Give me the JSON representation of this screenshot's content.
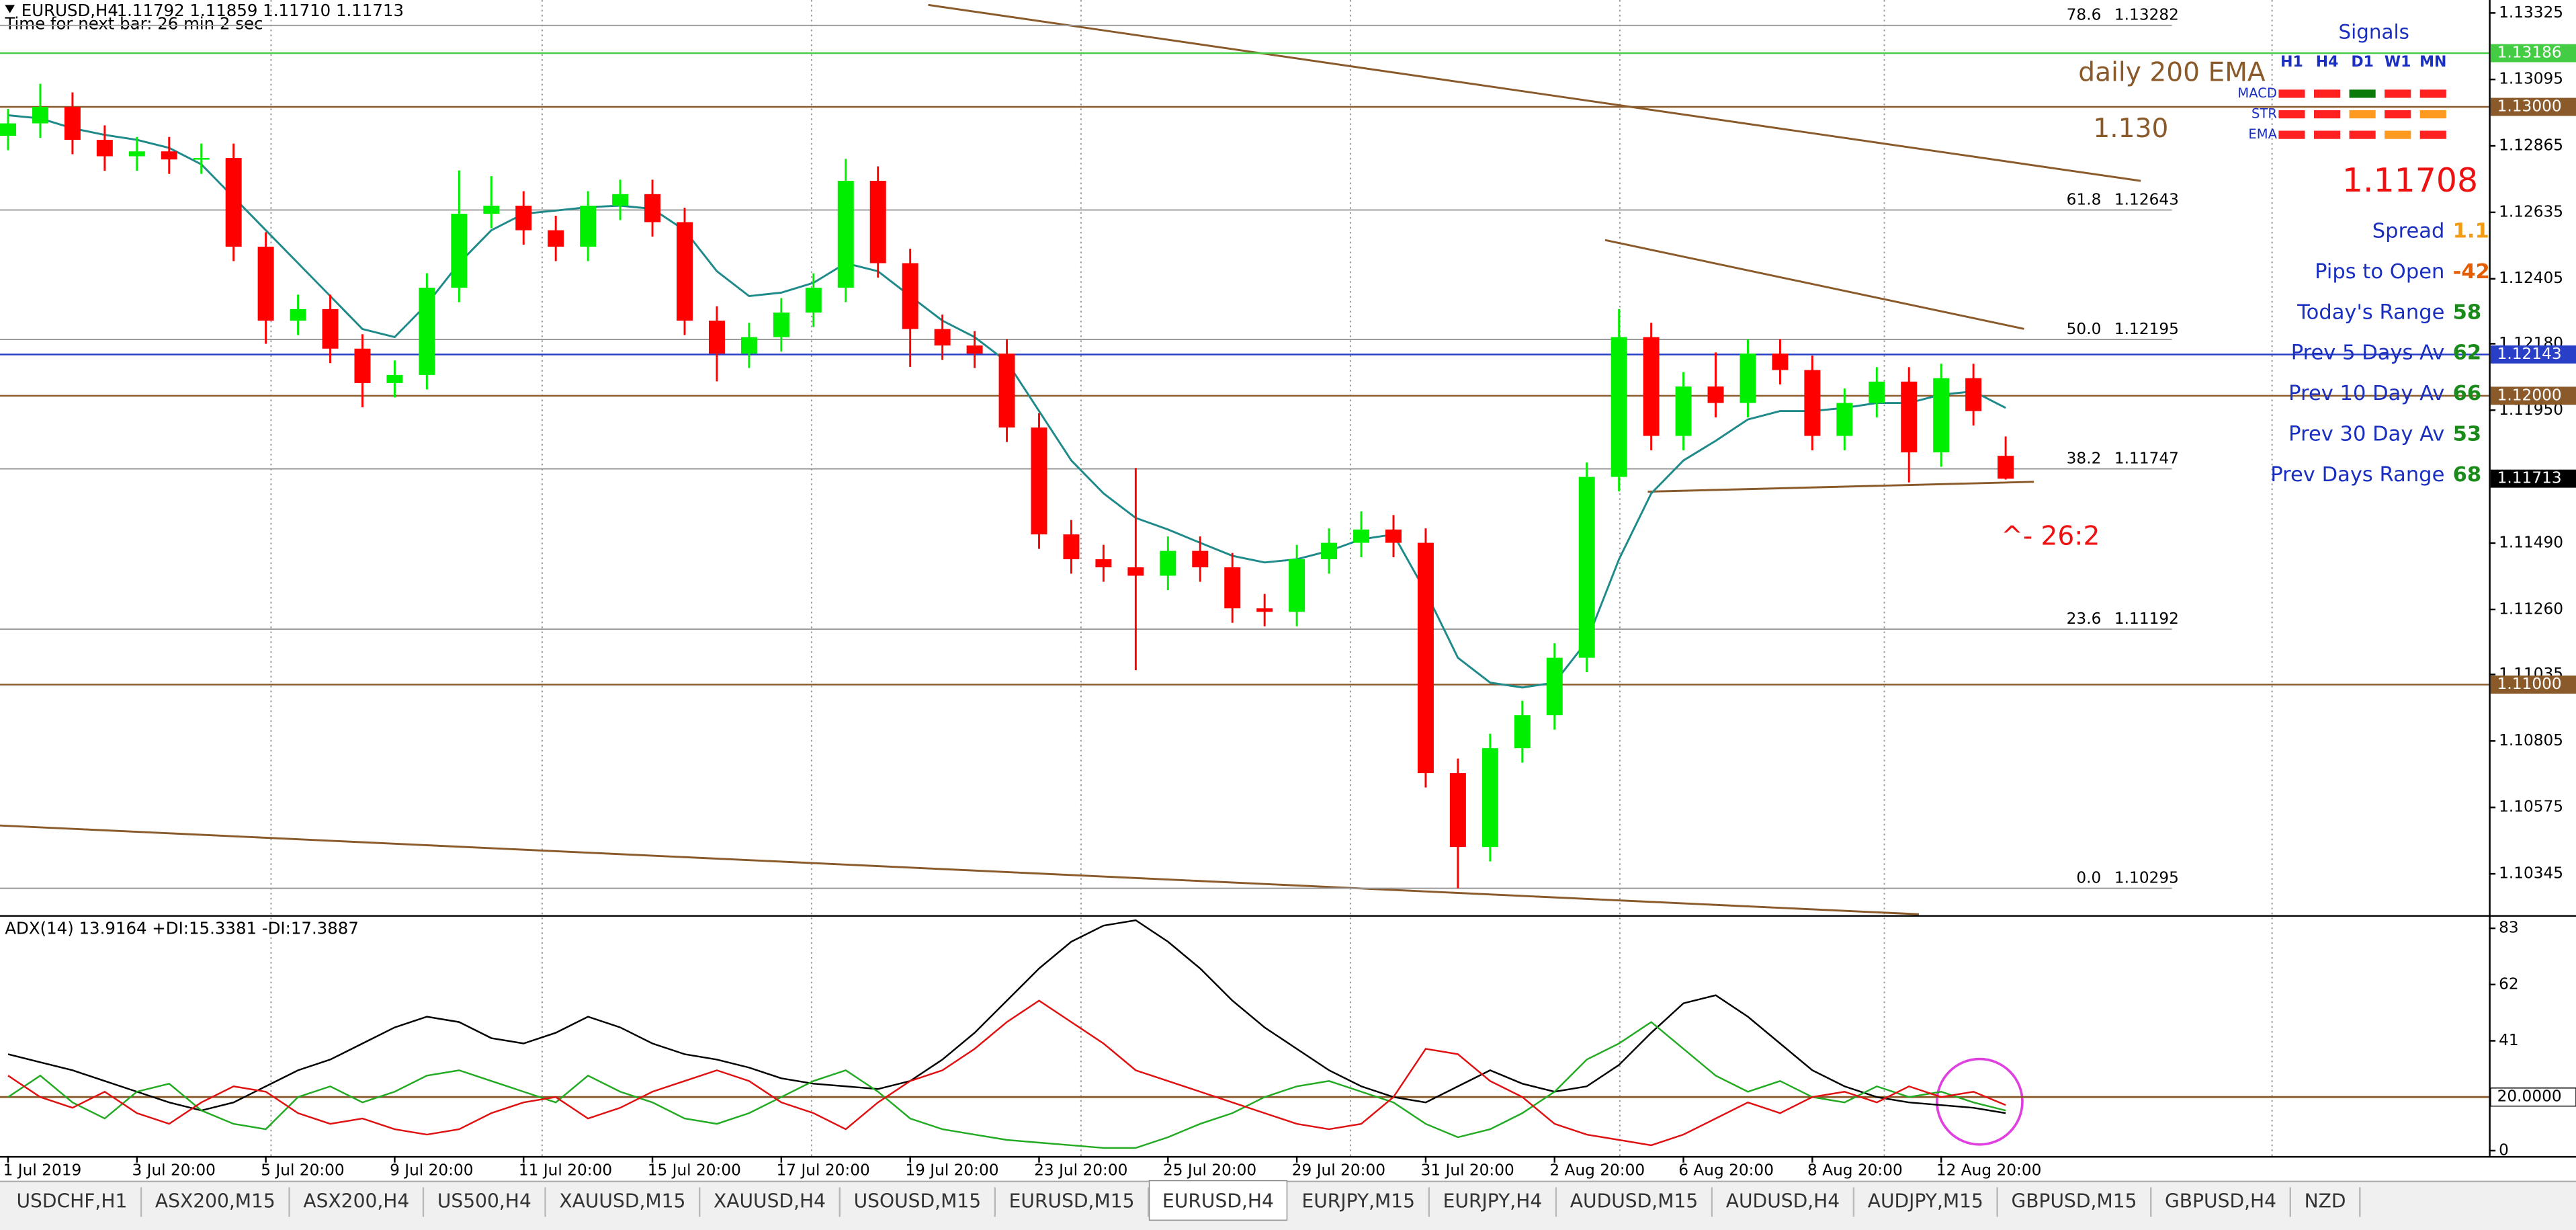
{
  "header": {
    "symbol": "EURUSD,H4",
    "quote": "1.11792 1.11859 1.11710 1.11713",
    "timer": "Time for next bar: 26 min 2 sec"
  },
  "annotations": {
    "ema_label": "daily 200 EMA",
    "level_label": "1.130",
    "bid": 1.11708,
    "count": "^- 26:2"
  },
  "signals": {
    "title": "Signals",
    "columns": [
      "H1",
      "H4",
      "D1",
      "W1",
      "MN"
    ],
    "rows": [
      {
        "name": "MACD",
        "colors": [
          "#ff2020",
          "#ff2020",
          "#0a7a0a",
          "#ff2020",
          "#ff2020"
        ]
      },
      {
        "name": "STR",
        "colors": [
          "#ff2020",
          "#ff2020",
          "#ff9a20",
          "#ff2020",
          "#ff9a20"
        ]
      },
      {
        "name": "EMA",
        "colors": [
          "#ff2020",
          "#ff2020",
          "#ff2020",
          "#ff9a20",
          "#ff2020"
        ]
      }
    ]
  },
  "stats": [
    {
      "label": "Spread",
      "value": 1.1,
      "color": "#f39c12"
    },
    {
      "label": "Pips to Open",
      "value": -42,
      "color": "#e65c00"
    },
    {
      "label": "Today's Range",
      "value": 58,
      "color": "#1a8a1a"
    },
    {
      "label": "Prev 5 Days Av",
      "value": 62,
      "color": "#1a8a1a"
    },
    {
      "label": "Prev 10 Day Av",
      "value": 66,
      "color": "#1a8a1a"
    },
    {
      "label": "Prev 30 Day Av",
      "value": 53,
      "color": "#1a8a1a"
    },
    {
      "label": "Prev Days Range",
      "value": 68,
      "color": "#1a8a1a"
    }
  ],
  "tabs": {
    "items": [
      "USDCHF,H1",
      "ASX200,M15",
      "ASX200,H4",
      "US500,H4",
      "XAUUSD,M15",
      "XAUUSD,H4",
      "USOUSD,M15",
      "EURUSD,M15",
      "EURUSD,H4",
      "EURJPY,M15",
      "EURJPY,H4",
      "AUDUSD,M15",
      "AUDUSD,H4",
      "AUDJPY,M15",
      "GBPUSD,M15",
      "GBPUSD,H4",
      "NZD"
    ],
    "active": 8
  },
  "chart_data": [
    {
      "type": "candlestick",
      "bull_color": "#00ee00",
      "bear_color": "#ff0000",
      "xlim": [
        -0.25,
        77
      ],
      "ylim": [
        1.10205,
        1.1337
      ],
      "open": [
        1.129,
        1.12943,
        1.13,
        1.12886,
        1.12829,
        1.12846,
        1.12818,
        1.12823,
        1.12516,
        1.1226,
        1.123,
        1.12163,
        1.12044,
        1.12072,
        1.12374,
        1.1263,
        1.12658,
        1.12573,
        1.12516,
        1.12658,
        1.12698,
        1.12601,
        1.1226,
        1.12146,
        1.12203,
        1.12288,
        1.12374,
        1.12744,
        1.12459,
        1.12231,
        1.12174,
        1.12146,
        1.1189,
        1.1152,
        1.11434,
        1.11406,
        1.11377,
        1.11463,
        1.11406,
        1.11264,
        1.11252,
        1.11434,
        1.11491,
        1.11537,
        1.11491,
        1.10694,
        1.10438,
        1.1078,
        1.10894,
        1.11093,
        1.11719,
        1.12203,
        1.11861,
        1.12032,
        1.11975,
        1.12146,
        1.12089,
        1.11861,
        1.11975,
        1.12049,
        1.11804,
        1.12061,
        1.11792
      ],
      "high": [
        1.12993,
        1.1308,
        1.1305,
        1.12936,
        1.12896,
        1.12896,
        1.12873,
        1.12873,
        1.12566,
        1.1235,
        1.1235,
        1.12213,
        1.12122,
        1.12424,
        1.1278,
        1.1276,
        1.12708,
        1.12623,
        1.12708,
        1.12748,
        1.12748,
        1.12651,
        1.1231,
        1.12253,
        1.12338,
        1.12424,
        1.1282,
        1.12794,
        1.12509,
        1.12281,
        1.12224,
        1.12196,
        1.1194,
        1.1157,
        1.11484,
        1.1175,
        1.11513,
        1.11513,
        1.11456,
        1.11314,
        1.11484,
        1.11541,
        1.116,
        1.11587,
        1.11541,
        1.10744,
        1.1083,
        1.10944,
        1.11143,
        1.11769,
        1.123,
        1.12253,
        1.12082,
        1.1215,
        1.12196,
        1.12196,
        1.12139,
        1.12025,
        1.12099,
        1.12099,
        1.12111,
        1.12111,
        1.11859
      ],
      "low": [
        1.1285,
        1.12893,
        1.12836,
        1.12779,
        1.12779,
        1.12768,
        1.12768,
        1.12466,
        1.1218,
        1.1221,
        1.12113,
        1.1196,
        1.11994,
        1.12022,
        1.12324,
        1.1258,
        1.12523,
        1.12466,
        1.12466,
        1.12608,
        1.12551,
        1.1221,
        1.1205,
        1.12096,
        1.12153,
        1.12238,
        1.12324,
        1.12409,
        1.121,
        1.12124,
        1.12096,
        1.1184,
        1.1147,
        1.11384,
        1.11356,
        1.1105,
        1.11327,
        1.11356,
        1.11214,
        1.11202,
        1.11202,
        1.11384,
        1.11441,
        1.11441,
        1.10644,
        1.10295,
        1.10388,
        1.1073,
        1.10844,
        1.11043,
        1.11669,
        1.11811,
        1.11811,
        1.11925,
        1.11925,
        1.12039,
        1.11811,
        1.11811,
        1.11925,
        1.117,
        1.11754,
        1.11897,
        1.1171
      ],
      "close": [
        1.12943,
        1.13,
        1.12886,
        1.12829,
        1.12846,
        1.12818,
        1.12823,
        1.12516,
        1.1226,
        1.123,
        1.12163,
        1.12044,
        1.12072,
        1.12374,
        1.1263,
        1.12658,
        1.12573,
        1.12516,
        1.12658,
        1.12698,
        1.12601,
        1.1226,
        1.12146,
        1.12203,
        1.12288,
        1.12374,
        1.12744,
        1.12459,
        1.12231,
        1.12174,
        1.12146,
        1.1189,
        1.1152,
        1.11434,
        1.11406,
        1.11377,
        1.11463,
        1.11406,
        1.11264,
        1.11252,
        1.11434,
        1.11491,
        1.11537,
        1.11491,
        1.10694,
        1.10438,
        1.1078,
        1.10894,
        1.11093,
        1.11719,
        1.12203,
        1.11861,
        1.12032,
        1.11975,
        1.12146,
        1.12089,
        1.11861,
        1.11975,
        1.12049,
        1.11804,
        1.12061,
        1.11947,
        1.11713
      ],
      "series": [
        {
          "color": "#1f8a8a",
          "values": [
            1.12971,
            1.1296,
            1.12926,
            1.12903,
            1.12886,
            1.12858,
            1.12801,
            1.12687,
            1.12573,
            1.12459,
            1.12345,
            1.12231,
            1.12203,
            1.12317,
            1.12459,
            1.12573,
            1.1263,
            1.12641,
            1.12653,
            1.12658,
            1.12647,
            1.12573,
            1.12431,
            1.12345,
            1.12357,
            1.12391,
            1.12459,
            1.12431,
            1.12345,
            1.1226,
            1.12203,
            1.12118,
            1.11947,
            1.11776,
            1.11662,
            1.11577,
            1.11537,
            1.11491,
            1.11446,
            1.11423,
            1.11434,
            1.11463,
            1.11503,
            1.1152,
            1.11321,
            1.11093,
            1.11007,
            1.1099,
            1.11007,
            1.1115,
            1.11434,
            1.11662,
            1.11776,
            1.11844,
            1.11918,
            1.11947,
            1.11947,
            1.11958,
            1.11975,
            1.11975,
            1.12004,
            1.12015,
            1.11958
          ]
        }
      ],
      "yticks": [
        1.13325,
        1.13095,
        1.12865,
        1.12635,
        1.12405,
        {
          "value": 1.1218,
          "label": "1.12180"
        },
        {
          "value": 1.1195,
          "label": "1.11950"
        },
        {
          "value": 1.1149,
          "label": "1.11490"
        },
        {
          "value": 1.1126,
          "label": "1.11260"
        },
        1.11035,
        1.10805,
        1.10575,
        1.10345
      ],
      "levels": [
        {
          "price": 1.13186,
          "color": "#44cc44",
          "text_color": "#ffffff",
          "line": true
        },
        {
          "price": {
            "value": 1.13,
            "label": "1.13000"
          },
          "color": "#8b5a2b",
          "text_color": "#ffffff",
          "line": true
        },
        {
          "price": 1.12143,
          "color": "#2a3fc8",
          "text_color": "#ffffff",
          "line": true
        },
        {
          "price": {
            "value": 1.12,
            "label": "1.12000"
          },
          "color": "#8b5a2b",
          "text_color": "#ffffff",
          "line": true
        },
        {
          "price": 1.11713,
          "color": "#000000",
          "text_color": "#ffffff",
          "line": false
        },
        {
          "price": {
            "value": 1.11,
            "label": "1.11000"
          },
          "color": "#8b5a2b",
          "text_color": "#ffffff",
          "line": true
        }
      ],
      "fib": [
        {
          "level": "78.6",
          "price": 1.13282
        },
        {
          "level": "61.8",
          "price": 1.12643
        },
        {
          "level": "50.0",
          "price": 1.12195
        },
        {
          "level": "38.2",
          "price": 1.11747
        },
        {
          "level": "23.6",
          "price": 1.11192
        },
        {
          "level": "0.0",
          "price": 1.10295
        }
      ]
    },
    {
      "type": "line",
      "title": "ADX(14) 13.9164 +DI:15.3381 -DI:17.3887",
      "xlim": [
        -0.25,
        77
      ],
      "ylim": [
        -2,
        87
      ],
      "yticks": [
        83,
        62,
        41,
        0
      ],
      "level": {
        "value": {
          "value": 20,
          "label": "20.0000"
        },
        "color": "#8b5a2b"
      },
      "series": [
        {
          "color": "#000000",
          "values": [
            36,
            33,
            30,
            26,
            22,
            18,
            15,
            18,
            24,
            30,
            34,
            40,
            46,
            50,
            48,
            42,
            40,
            44,
            50,
            46,
            40,
            36,
            34,
            31,
            27,
            25,
            24,
            23,
            26,
            34,
            44,
            56,
            68,
            78,
            84,
            86,
            78,
            68,
            56,
            46,
            38,
            30,
            24,
            20,
            18,
            24,
            30,
            25,
            22,
            24,
            32,
            44,
            55,
            58,
            50,
            40,
            30,
            24,
            20,
            18,
            17,
            16,
            14
          ]
        },
        {
          "color": "#22aa22",
          "values": [
            20,
            28,
            18,
            12,
            22,
            25,
            15,
            10,
            8,
            20,
            24,
            18,
            22,
            28,
            30,
            26,
            22,
            18,
            28,
            22,
            18,
            12,
            10,
            14,
            20,
            26,
            30,
            22,
            12,
            8,
            6,
            4,
            3,
            2,
            1,
            1,
            5,
            10,
            14,
            20,
            24,
            26,
            22,
            18,
            10,
            5,
            8,
            14,
            22,
            34,
            40,
            48,
            38,
            28,
            22,
            26,
            20,
            18,
            24,
            20,
            22,
            18,
            15
          ]
        },
        {
          "color": "#e01010",
          "values": [
            28,
            20,
            16,
            22,
            14,
            10,
            18,
            24,
            22,
            14,
            10,
            12,
            8,
            6,
            8,
            14,
            18,
            20,
            12,
            16,
            22,
            26,
            30,
            26,
            18,
            14,
            8,
            18,
            26,
            30,
            38,
            48,
            56,
            48,
            40,
            30,
            26,
            22,
            18,
            14,
            10,
            8,
            10,
            20,
            38,
            36,
            26,
            20,
            10,
            6,
            4,
            2,
            6,
            12,
            18,
            14,
            20,
            22,
            18,
            24,
            20,
            22,
            17
          ]
        }
      ],
      "xticks": [
        {
          "value": 0,
          "label": "1 Jul 2019"
        },
        {
          "value": 4,
          "label": "3 Jul 20:00"
        },
        {
          "value": 8,
          "label": "5 Jul 20:00"
        },
        {
          "value": 12,
          "label": "9 Jul 20:00"
        },
        {
          "value": 16,
          "label": "11 Jul 20:00"
        },
        {
          "value": 20,
          "label": "15 Jul 20:00"
        },
        {
          "value": 24,
          "label": "17 Jul 20:00"
        },
        {
          "value": 28,
          "label": "19 Jul 20:00"
        },
        {
          "value": 32,
          "label": "23 Jul 20:00"
        },
        {
          "value": 36,
          "label": "25 Jul 20:00"
        },
        {
          "value": 40,
          "label": "29 Jul 20:00"
        },
        {
          "value": 44,
          "label": "31 Jul 20:00"
        },
        {
          "value": 48,
          "label": "2 Aug 20:00"
        },
        {
          "value": 52,
          "label": "6 Aug 20:00"
        },
        {
          "value": 56,
          "label": "8 Aug 20:00"
        },
        {
          "value": 60,
          "label": "12 Aug 20:00"
        }
      ]
    }
  ]
}
